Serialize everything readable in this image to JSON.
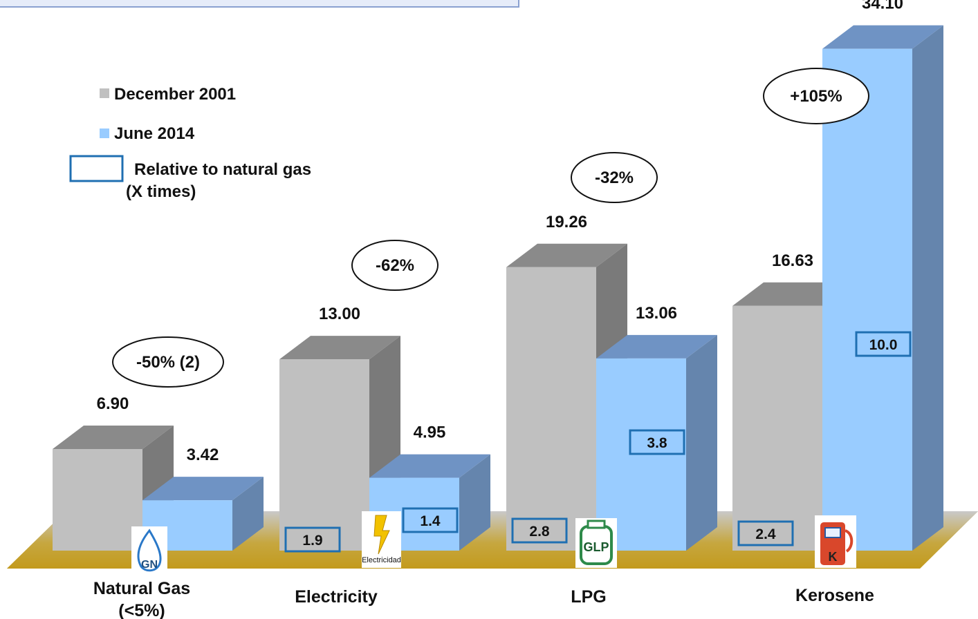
{
  "chart_data": {
    "type": "bar",
    "categories": [
      "Natural Gas (<5%)",
      "Electricity",
      "LPG",
      "Kerosene"
    ],
    "category_lines": [
      [
        "Natural Gas",
        "(<5%)"
      ],
      [
        "Electricity"
      ],
      [
        "LPG"
      ],
      [
        "Kerosene"
      ]
    ],
    "series": [
      {
        "name": "December 2001",
        "values": [
          6.9,
          13.0,
          19.26,
          16.63
        ],
        "labels": [
          "6.90",
          "13.00",
          "19.26",
          "16.63"
        ],
        "color": "#c0c0c0"
      },
      {
        "name": "June 2014",
        "values": [
          3.42,
          4.95,
          13.06,
          34.1
        ],
        "labels": [
          "3.42",
          "4.95",
          "13.06",
          "34.10"
        ],
        "color": "#99ccff"
      }
    ],
    "relative_to_natural_gas": {
      "december_2001": [
        null,
        "1.9",
        "2.8",
        "2.4"
      ],
      "june_2014": [
        null,
        "1.4",
        "3.8",
        "10.0"
      ]
    },
    "change_labels": [
      "-50% (2)",
      "-62%",
      "-32%",
      "+105%"
    ],
    "legend": {
      "items": [
        "December 2001",
        "June 2014"
      ],
      "box_label_lines": [
        "Relative to natural gas",
        "(X times)"
      ],
      "position": "top-left"
    },
    "icons": [
      {
        "name": "natural-gas-icon",
        "text": "GN"
      },
      {
        "name": "electricity-icon",
        "text": "Electricidad"
      },
      {
        "name": "lpg-icon",
        "text": "GLP"
      },
      {
        "name": "kerosene-icon",
        "text": "K"
      }
    ],
    "three_d": true,
    "grid": false,
    "colors": {
      "floor": "#c9a227",
      "box_border": "#1f6fb2",
      "bar_gray": "#c0c0c0",
      "bar_blue": "#99ccff"
    }
  }
}
